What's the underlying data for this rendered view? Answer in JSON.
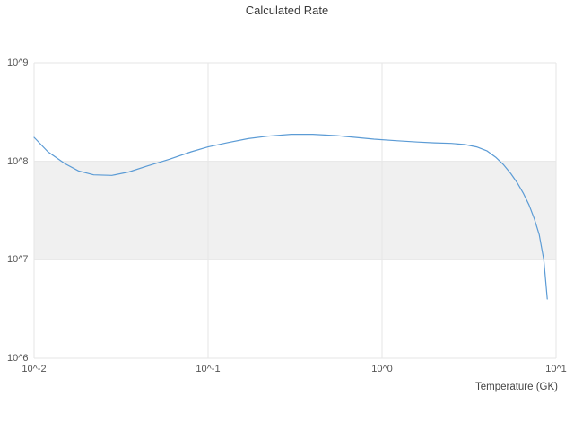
{
  "chart_data": {
    "type": "line",
    "title": "Calculated Rate",
    "xlabel": "Temperature (GK)",
    "ylabel": "",
    "x_scale": "log",
    "y_scale": "log",
    "xlim": [
      0.01,
      10
    ],
    "ylim": [
      1000000,
      1000000000
    ],
    "grid": true,
    "legend": "none",
    "x_ticks": [
      {
        "value": 0.01,
        "label": "10^-2"
      },
      {
        "value": 0.1,
        "label": "10^-1"
      },
      {
        "value": 1,
        "label": "10^0"
      },
      {
        "value": 10,
        "label": "10^1"
      }
    ],
    "y_ticks": [
      {
        "value": 1000000,
        "label": "10^6"
      },
      {
        "value": 10000000,
        "label": "10^7"
      },
      {
        "value": 100000000,
        "label": "10^8"
      },
      {
        "value": 1000000000,
        "label": "10^9"
      }
    ],
    "band": {
      "y_from": 10000000,
      "y_to": 100000000,
      "color": "#f0f0f0"
    },
    "colors": {
      "line": "#5b9bd5",
      "grid": "#e6e6e6",
      "tick_text": "#555555",
      "title_text": "#3a3a3a"
    },
    "series": [
      {
        "name": "rate",
        "x": [
          0.01,
          0.012,
          0.015,
          0.018,
          0.022,
          0.028,
          0.035,
          0.045,
          0.06,
          0.08,
          0.1,
          0.13,
          0.17,
          0.22,
          0.3,
          0.4,
          0.55,
          0.7,
          0.9,
          1.2,
          1.6,
          2.0,
          2.5,
          3.0,
          3.5,
          4.0,
          4.5,
          5.0,
          5.5,
          6.0,
          6.5,
          7.0,
          7.5,
          8.0,
          8.5,
          8.9
        ],
        "y": [
          175000000.0,
          125000000.0,
          95000000.0,
          80000000.0,
          73000000.0,
          72000000.0,
          78000000.0,
          90000000.0,
          105000000.0,
          125000000.0,
          140000000.0,
          155000000.0,
          170000000.0,
          180000000.0,
          188000000.0,
          188000000.0,
          182000000.0,
          175000000.0,
          168000000.0,
          162000000.0,
          157000000.0,
          154000000.0,
          152000000.0,
          148000000.0,
          140000000.0,
          128000000.0,
          110000000.0,
          92000000.0,
          75000000.0,
          60000000.0,
          47000000.0,
          36000000.0,
          26000000.0,
          18000000.0,
          10000000.0,
          4000000.0
        ]
      }
    ]
  }
}
